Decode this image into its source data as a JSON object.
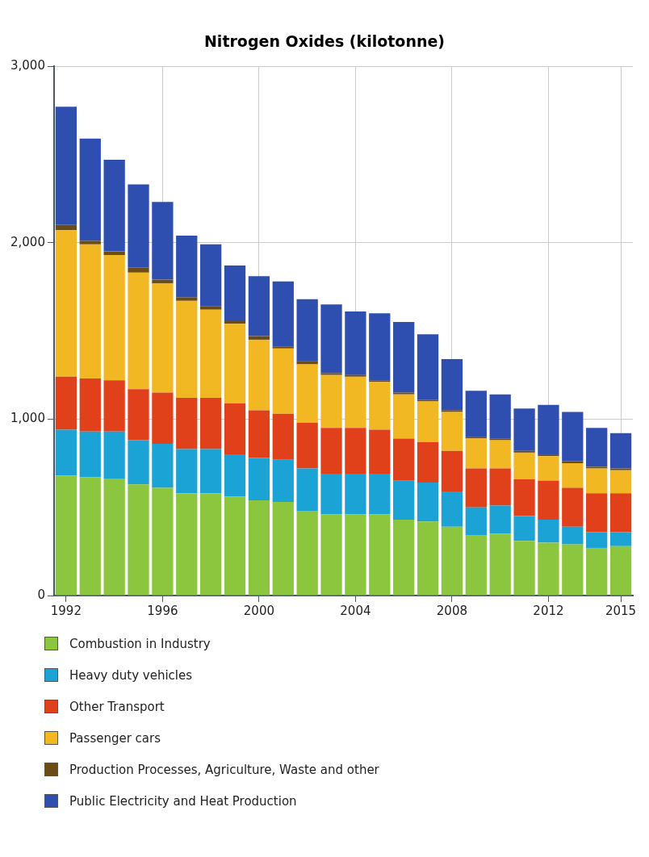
{
  "chart_data": {
    "type": "bar",
    "title": "Nitrogen Oxides (kilotonne)",
    "stacked": true,
    "grid": true,
    "legend": "bottom",
    "categories": [
      "1992",
      null,
      null,
      null,
      "1996",
      null,
      null,
      null,
      "2000",
      null,
      null,
      null,
      "2004",
      null,
      null,
      null,
      "2008",
      null,
      null,
      null,
      "2012",
      null,
      null,
      "2015"
    ],
    "ylim": [
      0,
      3000
    ],
    "yticks": [
      0,
      {
        "value": 1000,
        "label": "1,000"
      },
      {
        "value": 2000,
        "label": "2,000"
      },
      {
        "value": 3000,
        "label": "3,000"
      }
    ],
    "series": [
      {
        "name": "Combustion in Industry",
        "color": "#8cc63f",
        "values": [
          680,
          670,
          660,
          630,
          610,
          580,
          580,
          560,
          540,
          530,
          480,
          460,
          460,
          460,
          430,
          420,
          390,
          340,
          350,
          310,
          300,
          290,
          270,
          280
        ]
      },
      {
        "name": "Heavy duty vehicles",
        "color": "#1ba3d6",
        "values": [
          260,
          260,
          270,
          250,
          250,
          250,
          250,
          240,
          240,
          240,
          240,
          230,
          230,
          230,
          220,
          220,
          200,
          160,
          160,
          140,
          130,
          100,
          90,
          80
        ]
      },
      {
        "name": "Other Transport",
        "color": "#e0401a",
        "values": [
          300,
          300,
          290,
          290,
          290,
          290,
          290,
          290,
          270,
          260,
          260,
          260,
          260,
          250,
          240,
          230,
          230,
          220,
          210,
          210,
          220,
          220,
          220,
          220
        ]
      },
      {
        "name": "Passenger cars",
        "color": "#f2b824",
        "values": [
          830,
          760,
          710,
          660,
          620,
          550,
          500,
          450,
          400,
          370,
          330,
          300,
          290,
          270,
          250,
          230,
          220,
          170,
          160,
          150,
          140,
          140,
          140,
          130
        ]
      },
      {
        "name": "Production Processes, Agriculture, Waste and other",
        "color": "#6b4c16",
        "values": [
          30,
          20,
          20,
          30,
          20,
          20,
          20,
          20,
          20,
          10,
          20,
          10,
          10,
          10,
          10,
          10,
          10,
          10,
          10,
          10,
          10,
          10,
          10,
          10
        ]
      },
      {
        "name": "Public Electricity and Heat Production",
        "color": "#2f4fb0",
        "values": [
          670,
          580,
          520,
          470,
          440,
          350,
          350,
          310,
          340,
          370,
          350,
          390,
          360,
          380,
          400,
          370,
          290,
          260,
          250,
          240,
          280,
          280,
          220,
          200
        ]
      }
    ]
  }
}
